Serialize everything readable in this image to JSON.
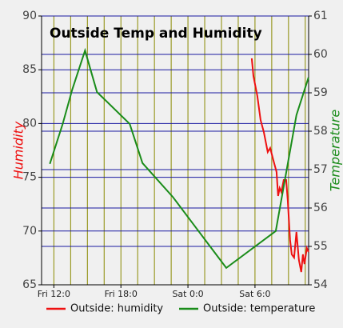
{
  "chart_data": {
    "type": "line",
    "title": "Outside Temp and Humidity",
    "ylabel": "Humidity",
    "y2label": "Temperature",
    "xlim": [
      10.9,
      34.8
    ],
    "xticks": [
      {
        "value": 12,
        "label": "Fri 12:0"
      },
      {
        "value": 18,
        "label": "Fri 18:0"
      },
      {
        "value": 24,
        "label": "Sat 0:0"
      },
      {
        "value": 30,
        "label": "Sat 6:0"
      }
    ],
    "xgrid": [
      12,
      13.5,
      15,
      16.5,
      18,
      19.5,
      21,
      22.5,
      24,
      25.5,
      27,
      28.5,
      30,
      31.5,
      33,
      34.5
    ],
    "ylim": [
      65,
      90
    ],
    "yticks": [
      65,
      70,
      75,
      80,
      85,
      90
    ],
    "y2lim": [
      54,
      61
    ],
    "y2ticks": [
      54,
      55,
      56,
      57,
      58,
      59,
      60,
      61
    ],
    "grid": true,
    "legend": "bottom",
    "series": [
      {
        "name": "Outside: humidity",
        "color": "#ee1111",
        "axis": "y",
        "x": [
          29.71,
          29.86,
          30.21,
          30.5,
          30.79,
          31.14,
          31.36,
          31.64,
          31.93,
          32.07,
          32.21,
          32.36,
          32.57,
          32.79,
          32.93,
          33.14,
          33.29,
          33.5,
          33.71,
          33.93,
          34.14,
          34.29,
          34.43,
          34.64,
          34.79
        ],
        "values": [
          86.06,
          84.42,
          82.56,
          80.33,
          79.21,
          77.35,
          77.72,
          76.61,
          75.49,
          73.26,
          74.0,
          73.63,
          74.75,
          74.75,
          72.89,
          69.17,
          67.83,
          67.53,
          69.91,
          67.31,
          66.19,
          67.83,
          66.93,
          68.42,
          68.05
        ]
      },
      {
        "name": "Outside: temperature",
        "color": "#1a8c1a",
        "axis": "y2",
        "x": [
          11.64,
          12.79,
          13.64,
          14.79,
          15.86,
          18.79,
          19.93,
          22.64,
          27.43,
          31.86,
          33.71,
          34.79
        ],
        "values": [
          57.15,
          58.19,
          59.08,
          60.1,
          59.02,
          58.19,
          57.17,
          56.29,
          54.44,
          55.4,
          58.42,
          59.4
        ]
      }
    ]
  }
}
